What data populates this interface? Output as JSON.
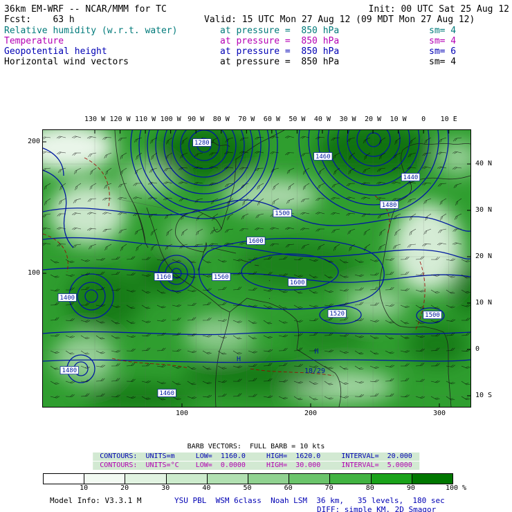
{
  "header": {
    "title_left": "36km EM-WRF -- NCAR/MMM for TC",
    "init": "Init: 00 UTC Sat 25 Aug 12",
    "fcst": "Fcst:    63 h",
    "valid": "Valid: 15 UTC Mon 27 Aug 12 (09 MDT Mon 27 Aug 12)"
  },
  "fields": [
    {
      "name": "Relative humidity (w.r.t. water)",
      "at": "at pressure =  850 hPa",
      "sm": "sm= 4",
      "color": "#007a7a"
    },
    {
      "name": "Temperature",
      "at": "at pressure =  850 hPa",
      "sm": "sm= 4",
      "color": "#b400b4"
    },
    {
      "name": "Geopotential height",
      "at": "at pressure =  850 hPa",
      "sm": "sm= 6",
      "color": "#0000b4"
    },
    {
      "name": "Horizontal wind vectors",
      "at": "at pressure =  850 hPa",
      "sm": "sm= 4",
      "color": "#000000"
    }
  ],
  "legend": {
    "barb_line": "BARB VECTORS:  FULL BARB = 10 kts",
    "contours_m": "CONTOURS:  UNITS=m     LOW=  1160.0     HIGH=  1620.0     INTERVAL=  20.000",
    "contours_c": "CONTOURS:  UNITS=°C    LOW=  0.0000     HIGH=  30.000     INTERVAL=  5.0000",
    "contours_m_color": "#0000b4",
    "contours_c_color": "#b400b4",
    "band_color": "#d2e9d2"
  },
  "colorbar": {
    "ticks": [
      "10",
      "20",
      "30",
      "40",
      "50",
      "60",
      "70",
      "80",
      "90",
      "100"
    ],
    "unit": "%",
    "colors": [
      "#ffffff",
      "#f2faf2",
      "#e1f3e1",
      "#ccebcc",
      "#b1e0b1",
      "#90d290",
      "#6ac46a",
      "#41b341",
      "#1aa21a",
      "#007700"
    ]
  },
  "model_info": {
    "left": "Model Info: V3.3.1 M",
    "physics": "YSU PBL  WSM 6class  Noah LSM  36 km,   35 levels,  180 sec",
    "diff": "DIFF: simple KM, 2D Smagor",
    "color": "#0000b4"
  },
  "chart_data": {
    "type": "heatmap",
    "title": "36km EM-WRF -- NCAR/MMM for TC",
    "init_time": "00 UTC Sat 25 Aug 12",
    "valid_time": "15 UTC Mon 27 Aug 12 (09 MDT Mon 27 Aug 12)",
    "forecast_hour": 63,
    "level_hPa": 850,
    "layers": [
      {
        "field": "Relative humidity (w.r.t. water)",
        "style": "green shaded fill",
        "units": "%",
        "levels": [
          0,
          10,
          20,
          30,
          40,
          50,
          60,
          70,
          80,
          90,
          100
        ],
        "smooth": 4
      },
      {
        "field": "Temperature",
        "style": "dashed contours",
        "units": "°C",
        "low": 0,
        "high": 30,
        "interval": 5,
        "smooth": 4
      },
      {
        "field": "Geopotential height",
        "style": "solid contours",
        "units": "m",
        "low": 1160,
        "high": 1620,
        "interval": 20,
        "smooth": 6
      },
      {
        "field": "Horizontal wind vectors",
        "style": "wind barbs",
        "full_barb_kts": 10,
        "smooth": 4
      }
    ],
    "axes": {
      "top_lon_ticks": [
        "130 W",
        "120 W",
        "110 W",
        "100 W",
        "90 W",
        "80 W",
        "70 W",
        "60 W",
        "50 W",
        "40 W",
        "30 W",
        "20 W",
        "10 W",
        "0",
        "10 E"
      ],
      "right_lat_ticks": [
        "40 N",
        "30 N",
        "20 N",
        "10 N",
        "0",
        "10 S"
      ],
      "left_grid_ticks": [
        "200",
        "100"
      ],
      "bottom_grid_ticks": [
        "100",
        "200",
        "300"
      ]
    },
    "contour_labels": [
      {
        "text": "1280",
        "x": 0.372,
        "y": 0.045,
        "boxed": true
      },
      {
        "text": "1460",
        "x": 0.655,
        "y": 0.095,
        "boxed": true
      },
      {
        "text": "1440",
        "x": 0.86,
        "y": 0.17,
        "boxed": true
      },
      {
        "text": "1480",
        "x": 0.81,
        "y": 0.27,
        "boxed": true
      },
      {
        "text": "1500",
        "x": 0.56,
        "y": 0.3,
        "boxed": true
      },
      {
        "text": "1600",
        "x": 0.498,
        "y": 0.4,
        "boxed": true
      },
      {
        "text": "1560",
        "x": 0.417,
        "y": 0.53,
        "boxed": true
      },
      {
        "text": "1160",
        "x": 0.282,
        "y": 0.53,
        "boxed": true
      },
      {
        "text": "1600",
        "x": 0.595,
        "y": 0.55,
        "boxed": true
      },
      {
        "text": "1520",
        "x": 0.688,
        "y": 0.663,
        "boxed": true
      },
      {
        "text": "1500",
        "x": 0.911,
        "y": 0.668,
        "boxed": true
      },
      {
        "text": "1400",
        "x": 0.057,
        "y": 0.605,
        "boxed": true
      },
      {
        "text": "1480",
        "x": 0.062,
        "y": 0.868,
        "boxed": true
      },
      {
        "text": "1460",
        "x": 0.29,
        "y": 0.95,
        "boxed": true
      },
      {
        "text": "H",
        "x": 0.458,
        "y": 0.828,
        "boxed": false
      },
      {
        "text": "H",
        "x": 0.64,
        "y": 0.8,
        "boxed": false
      },
      {
        "text": "18/29",
        "x": 0.636,
        "y": 0.87,
        "boxed": false
      }
    ]
  }
}
